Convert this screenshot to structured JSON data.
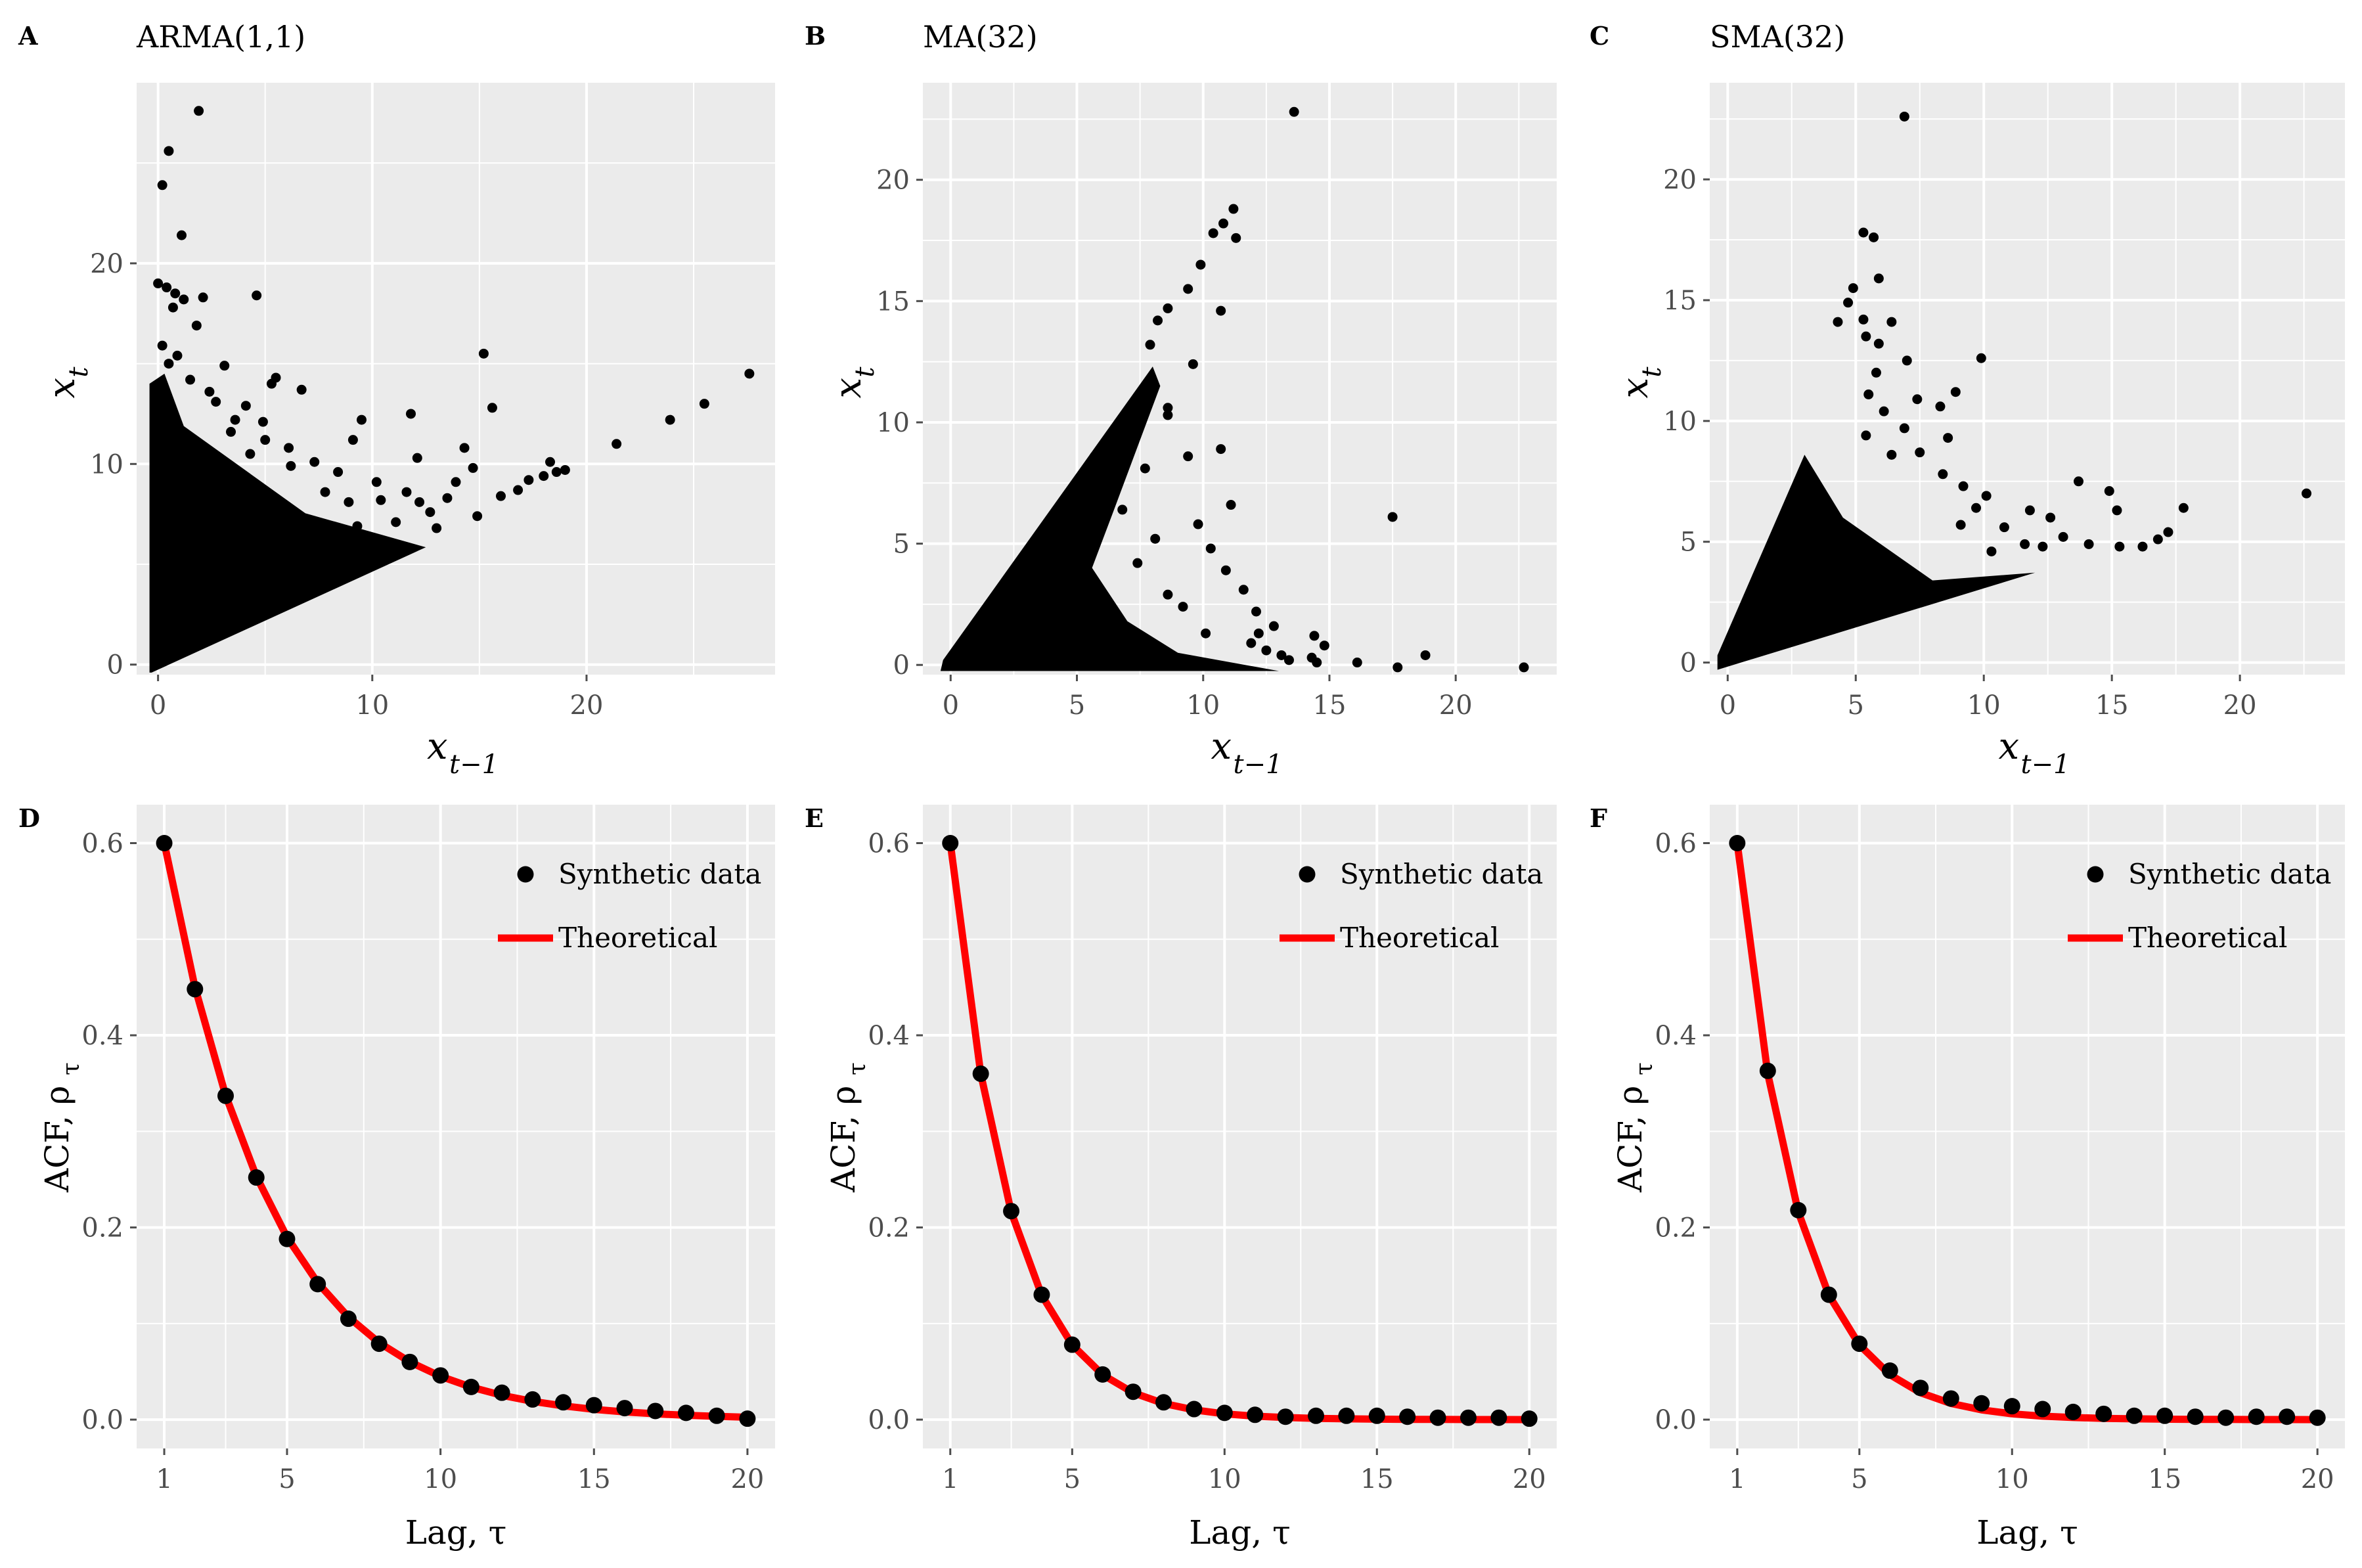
{
  "figure": {
    "background": "#ffffff",
    "panel_bg": "#ebebeb",
    "grid_color": "#ffffff",
    "point_color": "#000000",
    "line_color": "#ff0000",
    "text_color": "#000000",
    "tick_color": "#4d4d4d"
  },
  "chart_data": [
    {
      "panel": "A",
      "type": "scatter",
      "title": "ARMA(1,1)",
      "xlabel": "x",
      "xlabel_sub": "t−1",
      "ylabel": "x",
      "ylabel_sub": "t",
      "xlim": [
        -1.0,
        28.8
      ],
      "ylim": [
        -0.5,
        29.0
      ],
      "xticks": [
        0,
        10,
        20
      ],
      "yticks": [
        0,
        10,
        20
      ],
      "cone": {
        "type": "upper-wedge",
        "x_max": 12.5,
        "slope": 0.5,
        "y_min": -0.4,
        "y_top_at_zero": 14.5,
        "y_top_drop": 0.45
      },
      "points": [
        [
          1.9,
          27.6
        ],
        [
          0.5,
          25.6
        ],
        [
          0.2,
          23.9
        ],
        [
          1.1,
          21.4
        ],
        [
          0,
          19
        ],
        [
          0.4,
          18.8
        ],
        [
          0.8,
          18.5
        ],
        [
          1.2,
          18.2
        ],
        [
          0.7,
          17.8
        ],
        [
          2.1,
          18.3
        ],
        [
          4.6,
          18.4
        ],
        [
          1.8,
          16.9
        ],
        [
          0.2,
          15.9
        ],
        [
          0.9,
          15.4
        ],
        [
          0.5,
          15
        ],
        [
          3.1,
          14.9
        ],
        [
          5.5,
          14.3
        ],
        [
          5.3,
          14
        ],
        [
          6.7,
          13.7
        ],
        [
          2.4,
          13.6
        ],
        [
          4.1,
          12.9
        ],
        [
          4.9,
          12.1
        ],
        [
          3.4,
          11.6
        ],
        [
          9.5,
          12.2
        ],
        [
          11.8,
          12.5
        ],
        [
          9.1,
          11.2
        ],
        [
          15.2,
          15.5
        ],
        [
          15.6,
          12.8
        ],
        [
          14.3,
          10.8
        ],
        [
          12.1,
          10.3
        ],
        [
          17.3,
          9.2
        ],
        [
          18,
          9.4
        ],
        [
          18.6,
          9.6
        ],
        [
          19,
          9.7
        ],
        [
          18.3,
          10.1
        ],
        [
          21.4,
          11
        ],
        [
          23.9,
          12.2
        ],
        [
          25.5,
          13
        ],
        [
          27.6,
          14.5
        ],
        [
          7.3,
          10.1
        ],
        [
          8.4,
          9.6
        ],
        [
          6.2,
          9.9
        ],
        [
          10.4,
          8.2
        ],
        [
          12.7,
          7.6
        ],
        [
          13.5,
          8.3
        ],
        [
          16,
          8.4
        ],
        [
          16.8,
          8.7
        ],
        [
          14.9,
          7.4
        ],
        [
          11.1,
          7.1
        ],
        [
          9.3,
          6.9
        ],
        [
          13,
          6.8
        ],
        [
          6.1,
          10.8
        ],
        [
          5,
          11.2
        ],
        [
          7.8,
          8.6
        ],
        [
          3.6,
          12.2
        ],
        [
          2.7,
          13.1
        ],
        [
          1.5,
          14.2
        ],
        [
          10.2,
          9.1
        ],
        [
          8.9,
          8.1
        ],
        [
          4.3,
          10.5
        ],
        [
          11.6,
          8.6
        ],
        [
          12.2,
          8.1
        ],
        [
          13.9,
          9.1
        ],
        [
          14.7,
          9.8
        ]
      ]
    },
    {
      "panel": "B",
      "type": "scatter",
      "title": "MA(32)",
      "xlabel": "x",
      "xlabel_sub": "t−1",
      "ylabel": "x",
      "ylabel_sub": "t",
      "xlim": [
        -1.1,
        24.0
      ],
      "ylim": [
        -0.4,
        24.0
      ],
      "xticks": [
        0,
        5,
        10,
        15,
        20
      ],
      "yticks": [
        0,
        5,
        10,
        15,
        20
      ],
      "cone": {
        "type": "lower-triangle",
        "x_max": 13.0,
        "y_bottom": -0.2,
        "slope": 1.02,
        "right_y_end": 4.5
      },
      "points": [
        [
          13.6,
          22.8
        ],
        [
          11.2,
          18.8
        ],
        [
          10.8,
          18.2
        ],
        [
          10.4,
          17.8
        ],
        [
          11.3,
          17.6
        ],
        [
          9.9,
          16.5
        ],
        [
          9.4,
          15.5
        ],
        [
          8.6,
          14.7
        ],
        [
          8.2,
          14.2
        ],
        [
          10.7,
          14.6
        ],
        [
          7.9,
          13.2
        ],
        [
          9.6,
          12.4
        ],
        [
          8.6,
          10.6
        ],
        [
          8.6,
          10.3
        ],
        [
          7.3,
          10.2
        ],
        [
          10.7,
          8.9
        ],
        [
          9.4,
          8.6
        ],
        [
          7.7,
          8.1
        ],
        [
          11.1,
          6.6
        ],
        [
          17.5,
          6.1
        ],
        [
          6.3,
          9.1
        ],
        [
          9.8,
          5.8
        ],
        [
          10.3,
          4.8
        ],
        [
          8.1,
          5.2
        ],
        [
          10.9,
          3.9
        ],
        [
          11.6,
          3.1
        ],
        [
          12.1,
          2.2
        ],
        [
          12.8,
          1.6
        ],
        [
          13.1,
          0.4
        ],
        [
          14.4,
          1.2
        ],
        [
          14.8,
          0.8
        ],
        [
          14.3,
          0.3
        ],
        [
          14.5,
          0.1
        ],
        [
          16.1,
          0.1
        ],
        [
          17.7,
          -0.1
        ],
        [
          18.8,
          0.4
        ],
        [
          22.7,
          -0.1
        ],
        [
          12.5,
          0.6
        ],
        [
          11.9,
          0.9
        ],
        [
          13.4,
          0.2
        ],
        [
          10.1,
          1.3
        ],
        [
          9.2,
          2.4
        ],
        [
          8.6,
          2.9
        ],
        [
          7.4,
          4.2
        ],
        [
          6.8,
          6.4
        ],
        [
          6.2,
          7.3
        ],
        [
          5.7,
          8.6
        ],
        [
          12.2,
          1.3
        ]
      ]
    },
    {
      "panel": "C",
      "type": "scatter",
      "title": "SMA(32)",
      "xlabel": "x",
      "xlabel_sub": "t−1",
      "ylabel": "x",
      "ylabel_sub": "t",
      "xlim": [
        -0.7,
        24.1
      ],
      "ylim": [
        -0.5,
        24.0
      ],
      "xticks": [
        0,
        5,
        10,
        15,
        20
      ],
      "yticks": [
        0,
        5,
        10,
        15,
        20
      ],
      "cone": {
        "type": "upper-wedge",
        "x_max": 12.0,
        "slope": 0.31,
        "y_min": -0.3,
        "y_top_at_zero": 0.3,
        "y_top_slope": 2.9
      },
      "points": [
        [
          6.9,
          22.6
        ],
        [
          5.3,
          17.8
        ],
        [
          5.7,
          17.6
        ],
        [
          5.9,
          15.9
        ],
        [
          4.9,
          15.5
        ],
        [
          4.7,
          14.9
        ],
        [
          4.3,
          14.1
        ],
        [
          5.3,
          14.2
        ],
        [
          6.4,
          14.1
        ],
        [
          5.4,
          13.5
        ],
        [
          5.9,
          13.2
        ],
        [
          7.0,
          12.5
        ],
        [
          9.9,
          12.6
        ],
        [
          5.8,
          12
        ],
        [
          5.5,
          11.1
        ],
        [
          7.4,
          10.9
        ],
        [
          8.3,
          10.6
        ],
        [
          8.9,
          11.2
        ],
        [
          6.1,
          10.4
        ],
        [
          6.9,
          9.7
        ],
        [
          8.6,
          9.3
        ],
        [
          7.5,
          8.7
        ],
        [
          8.4,
          7.8
        ],
        [
          9.2,
          7.3
        ],
        [
          10.1,
          6.9
        ],
        [
          13.7,
          7.5
        ],
        [
          14.9,
          7.1
        ],
        [
          15.2,
          6.3
        ],
        [
          17.8,
          6.4
        ],
        [
          17.2,
          5.4
        ],
        [
          22.6,
          7.0
        ],
        [
          11.8,
          6.3
        ],
        [
          12.6,
          6.0
        ],
        [
          9.7,
          6.4
        ],
        [
          9.1,
          5.7
        ],
        [
          10.8,
          5.6
        ],
        [
          13.1,
          5.2
        ],
        [
          14.1,
          4.9
        ],
        [
          15.3,
          4.8
        ],
        [
          16.2,
          4.8
        ],
        [
          16.8,
          5.1
        ],
        [
          11.6,
          4.9
        ],
        [
          10.3,
          4.6
        ],
        [
          12.3,
          4.8
        ],
        [
          6.4,
          8.6
        ],
        [
          5.4,
          9.4
        ]
      ]
    },
    {
      "panel": "D",
      "type": "line+scatter",
      "xlabel": "Lag, τ",
      "ylabel": "ACF,  ρ",
      "ylabel_sub": "τ",
      "xlim": [
        0.1,
        20.9
      ],
      "ylim": [
        -0.03,
        0.64
      ],
      "xticks": [
        1,
        5,
        10,
        15,
        20
      ],
      "yticks": [
        0.0,
        0.2,
        0.4,
        0.6
      ],
      "legend": {
        "position": "top-right",
        "points_label": "Synthetic data",
        "line_label": "Theoretical"
      },
      "x": [
        1,
        2,
        3,
        4,
        5,
        6,
        7,
        8,
        9,
        10,
        11,
        12,
        13,
        14,
        15,
        16,
        17,
        18,
        19,
        20
      ],
      "series": [
        {
          "name": "Synthetic data",
          "values": [
            0.6,
            0.448,
            0.337,
            0.252,
            0.188,
            0.141,
            0.105,
            0.079,
            0.06,
            0.046,
            0.034,
            0.028,
            0.021,
            0.018,
            0.015,
            0.012,
            0.009,
            0.007,
            0.004,
            0.001
          ]
        },
        {
          "name": "Theoretical",
          "values": [
            0.6,
            0.45,
            0.3375,
            0.2531,
            0.1898,
            0.1424,
            0.1068,
            0.0801,
            0.0601,
            0.0451,
            0.0338,
            0.0253,
            0.019,
            0.0143,
            0.0107,
            0.008,
            0.006,
            0.0045,
            0.0034,
            0.0025
          ]
        }
      ]
    },
    {
      "panel": "E",
      "type": "line+scatter",
      "xlabel": "Lag, τ",
      "ylabel": "ACF,  ρ",
      "ylabel_sub": "τ",
      "xlim": [
        0.1,
        20.9
      ],
      "ylim": [
        -0.03,
        0.64
      ],
      "xticks": [
        1,
        5,
        10,
        15,
        20
      ],
      "yticks": [
        0.0,
        0.2,
        0.4,
        0.6
      ],
      "legend": {
        "position": "top-right",
        "points_label": "Synthetic data",
        "line_label": "Theoretical"
      },
      "x": [
        1,
        2,
        3,
        4,
        5,
        6,
        7,
        8,
        9,
        10,
        11,
        12,
        13,
        14,
        15,
        16,
        17,
        18,
        19,
        20
      ],
      "series": [
        {
          "name": "Synthetic data",
          "values": [
            0.6,
            0.36,
            0.217,
            0.13,
            0.078,
            0.047,
            0.029,
            0.018,
            0.011,
            0.007,
            0.005,
            0.003,
            0.004,
            0.004,
            0.004,
            0.003,
            0.002,
            0.002,
            0.002,
            0.001
          ]
        },
        {
          "name": "Theoretical",
          "values": [
            0.6,
            0.36,
            0.216,
            0.1296,
            0.0778,
            0.0467,
            0.028,
            0.0168,
            0.0101,
            0.006,
            0.0036,
            0.0022,
            0.0013,
            0.0008,
            0.0005,
            0.0003,
            0.0002,
            0.0001,
            0.0001,
            0.0
          ]
        }
      ]
    },
    {
      "panel": "F",
      "type": "line+scatter",
      "xlabel": "Lag, τ",
      "ylabel": "ACF,  ρ",
      "ylabel_sub": "τ",
      "xlim": [
        0.1,
        20.9
      ],
      "ylim": [
        -0.03,
        0.64
      ],
      "xticks": [
        1,
        5,
        10,
        15,
        20
      ],
      "yticks": [
        0.0,
        0.2,
        0.4,
        0.6
      ],
      "legend": {
        "position": "top-right",
        "points_label": "Synthetic data",
        "line_label": "Theoretical"
      },
      "x": [
        1,
        2,
        3,
        4,
        5,
        6,
        7,
        8,
        9,
        10,
        11,
        12,
        13,
        14,
        15,
        16,
        17,
        18,
        19,
        20
      ],
      "series": [
        {
          "name": "Synthetic data",
          "values": [
            0.6,
            0.363,
            0.218,
            0.13,
            0.079,
            0.051,
            0.033,
            0.022,
            0.017,
            0.014,
            0.011,
            0.008,
            0.006,
            0.004,
            0.004,
            0.003,
            0.002,
            0.003,
            0.003,
            0.002
          ]
        },
        {
          "name": "Theoretical",
          "values": [
            0.6,
            0.36,
            0.216,
            0.1296,
            0.0778,
            0.0467,
            0.028,
            0.0168,
            0.0101,
            0.006,
            0.0036,
            0.0022,
            0.0013,
            0.0008,
            0.0005,
            0.0003,
            0.0002,
            0.0001,
            0.0001,
            0.0
          ]
        }
      ]
    }
  ]
}
